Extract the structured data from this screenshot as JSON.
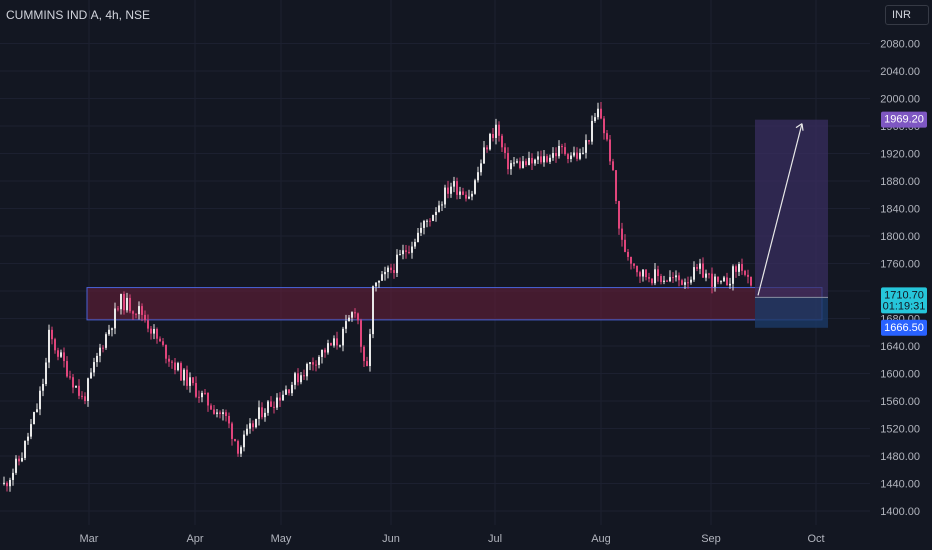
{
  "header": {
    "symbol_title": "CUMMINS INDIA, 4h, NSE",
    "currency": "INR"
  },
  "colors": {
    "background": "#131722",
    "up_candle": "#e8e8e8",
    "down_candle": "#e0457b",
    "zone_fill": "#6e1f3a",
    "zone_border": "#4a63d8",
    "target_zone_fill": "#3a2f63",
    "stop_zone_fill": "#1b3a66",
    "target_badge": "#7e57c2",
    "price_badge": "#26c6da",
    "stop_badge": "#2962ff"
  },
  "badges": {
    "target_price": "1969.20",
    "current_price": "1710.70",
    "countdown": "01:19:31",
    "stop_price": "1666.50"
  },
  "chart_data": {
    "type": "candlestick",
    "title": "CUMMINS INDIA, 4h, NSE",
    "y_ticks": [
      2080,
      2040,
      2000,
      1960,
      1920,
      1880,
      1840,
      1800,
      1760,
      1720,
      1680,
      1640,
      1600,
      1560,
      1520,
      1480,
      1440,
      1400
    ],
    "ylim": [
      1388,
      2098
    ],
    "x_ticks": [
      "Mar",
      "Apr",
      "May",
      "Jun",
      "Jul",
      "Aug",
      "Sep",
      "Oct"
    ],
    "series_path": [
      [
        "Feb",
        1440
      ],
      [
        "Feb",
        1478
      ],
      [
        "Feb",
        1550
      ],
      [
        "Feb",
        1600
      ],
      [
        "Feb",
        1655
      ],
      [
        "Feb",
        1595
      ],
      [
        "Feb",
        1560
      ],
      [
        "Mar",
        1640
      ],
      [
        "Mar",
        1705
      ],
      [
        "Mar",
        1690
      ],
      [
        "Mar",
        1640
      ],
      [
        "Mar",
        1600
      ],
      [
        "Apr",
        1560
      ],
      [
        "Apr",
        1535
      ],
      [
        "Apr",
        1490
      ],
      [
        "Apr",
        1545
      ],
      [
        "Apr",
        1570
      ],
      [
        "May",
        1600
      ],
      [
        "May",
        1630
      ],
      [
        "May",
        1650
      ],
      [
        "May",
        1700
      ],
      [
        "May",
        1585
      ],
      [
        "May",
        1720
      ],
      [
        "Jun",
        1760
      ],
      [
        "Jun",
        1800
      ],
      [
        "Jun",
        1830
      ],
      [
        "Jun",
        1875
      ],
      [
        "Jun",
        1860
      ],
      [
        "Jun",
        1930
      ],
      [
        "Jul",
        1960
      ],
      [
        "Jul",
        1905
      ],
      [
        "Jul",
        1905
      ],
      [
        "Jul",
        1925
      ],
      [
        "Jul",
        1915
      ],
      [
        "Aug",
        1985
      ],
      [
        "Aug",
        1910
      ],
      [
        "Aug",
        1790
      ],
      [
        "Aug",
        1745
      ],
      [
        "Aug",
        1735
      ],
      [
        "Sep",
        1750
      ],
      [
        "Sep",
        1725
      ],
      [
        "Sep",
        1760
      ],
      [
        "Sep",
        1710
      ]
    ],
    "zones": {
      "support_resistance": {
        "from": 1678,
        "to": 1725,
        "start": "Feb",
        "end": "Sep"
      },
      "long_position": {
        "entry": 1710.7,
        "target": 1969.2,
        "stop": 1666.5,
        "projected_to": "Oct"
      }
    }
  }
}
